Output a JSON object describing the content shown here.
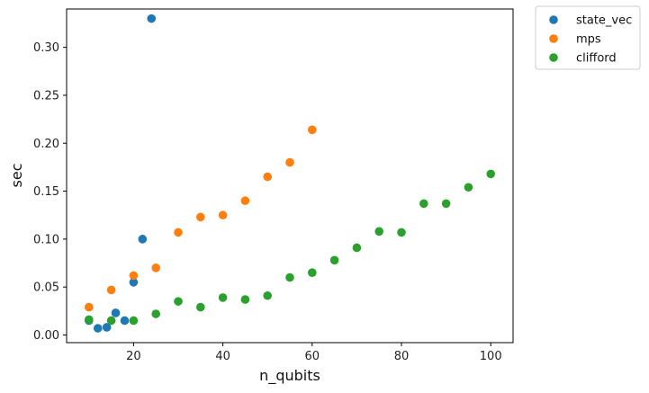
{
  "chart_data": {
    "type": "scatter",
    "xlabel": "n_qubits",
    "ylabel": "sec",
    "xlim": [
      5,
      105
    ],
    "ylim": [
      -0.008,
      0.34
    ],
    "xticks": [
      20,
      40,
      60,
      80,
      100
    ],
    "yticks": [
      0.0,
      0.05,
      0.1,
      0.15,
      0.2,
      0.25,
      0.3
    ],
    "ytick_labels": [
      "0.00",
      "0.05",
      "0.10",
      "0.15",
      "0.20",
      "0.25",
      "0.30"
    ],
    "grid": false,
    "legend_position": "outside-top-right",
    "series": [
      {
        "name": "state_vec",
        "color": "#1f77b4",
        "points": [
          {
            "x": 10,
            "y": 0.015
          },
          {
            "x": 12,
            "y": 0.007
          },
          {
            "x": 14,
            "y": 0.008
          },
          {
            "x": 16,
            "y": 0.023
          },
          {
            "x": 18,
            "y": 0.015
          },
          {
            "x": 20,
            "y": 0.055
          },
          {
            "x": 22,
            "y": 0.1
          },
          {
            "x": 24,
            "y": 0.33
          }
        ]
      },
      {
        "name": "mps",
        "color": "#ff7f0e",
        "points": [
          {
            "x": 10,
            "y": 0.029
          },
          {
            "x": 15,
            "y": 0.047
          },
          {
            "x": 20,
            "y": 0.062
          },
          {
            "x": 25,
            "y": 0.07
          },
          {
            "x": 30,
            "y": 0.107
          },
          {
            "x": 35,
            "y": 0.123
          },
          {
            "x": 40,
            "y": 0.125
          },
          {
            "x": 45,
            "y": 0.14
          },
          {
            "x": 50,
            "y": 0.165
          },
          {
            "x": 55,
            "y": 0.18
          },
          {
            "x": 60,
            "y": 0.214
          }
        ]
      },
      {
        "name": "clifford",
        "color": "#2ca02c",
        "points": [
          {
            "x": 10,
            "y": 0.016
          },
          {
            "x": 15,
            "y": 0.015
          },
          {
            "x": 20,
            "y": 0.015
          },
          {
            "x": 25,
            "y": 0.022
          },
          {
            "x": 30,
            "y": 0.035
          },
          {
            "x": 35,
            "y": 0.029
          },
          {
            "x": 40,
            "y": 0.039
          },
          {
            "x": 45,
            "y": 0.037
          },
          {
            "x": 50,
            "y": 0.041
          },
          {
            "x": 55,
            "y": 0.06
          },
          {
            "x": 60,
            "y": 0.065
          },
          {
            "x": 65,
            "y": 0.078
          },
          {
            "x": 70,
            "y": 0.091
          },
          {
            "x": 75,
            "y": 0.108
          },
          {
            "x": 80,
            "y": 0.107
          },
          {
            "x": 85,
            "y": 0.137
          },
          {
            "x": 90,
            "y": 0.137
          },
          {
            "x": 95,
            "y": 0.154
          },
          {
            "x": 100,
            "y": 0.168
          }
        ]
      }
    ]
  }
}
